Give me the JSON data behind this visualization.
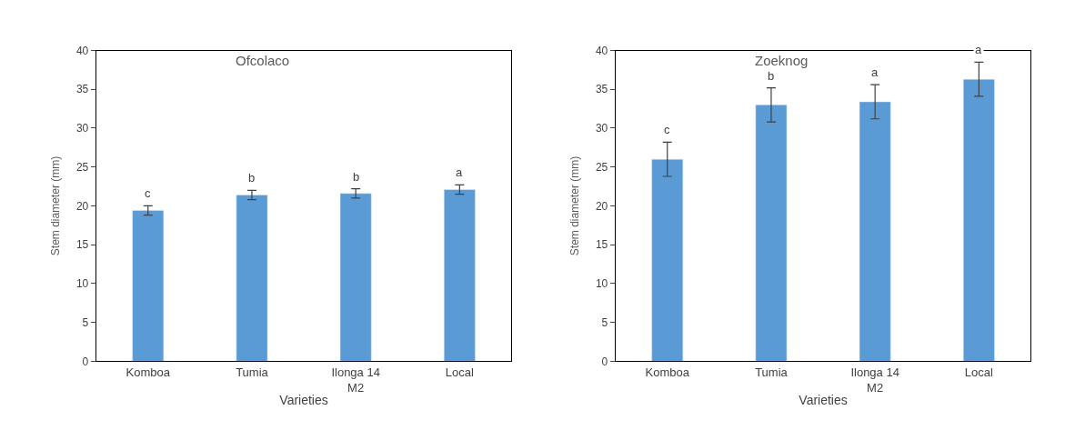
{
  "chart_data": [
    {
      "type": "bar",
      "title": "Ofcolaco",
      "xlabel": "Varieties",
      "ylabel": "Stem diameter (mm)",
      "categories": [
        "Komboa",
        "Tumia",
        "Ilonga 14 M2",
        "Local"
      ],
      "values": [
        19.4,
        21.4,
        21.6,
        22.1
      ],
      "errors": [
        0.6,
        0.6,
        0.6,
        0.6
      ],
      "color": "#5b9bd5",
      "ylim": [
        0,
        40
      ],
      "yticks": [
        0,
        5,
        10,
        15,
        20,
        25,
        30,
        35,
        40
      ],
      "annotations": [
        "c",
        "b",
        "b",
        "a"
      ]
    },
    {
      "type": "bar",
      "title": "Zoeknog",
      "xlabel": "Varieties",
      "ylabel": "Stem diameter (mm)",
      "categories": [
        "Komboa",
        "Tumia",
        "Ilonga 14 M2",
        "Local"
      ],
      "values": [
        26.0,
        33.0,
        33.4,
        36.3
      ],
      "errors": [
        2.2,
        2.2,
        2.2,
        2.2
      ],
      "color": "#5b9bd5",
      "ylim": [
        0,
        40
      ],
      "yticks": [
        0,
        5,
        10,
        15,
        20,
        25,
        30,
        35,
        40
      ],
      "annotations": [
        "c",
        "b",
        "a",
        "a"
      ]
    }
  ]
}
